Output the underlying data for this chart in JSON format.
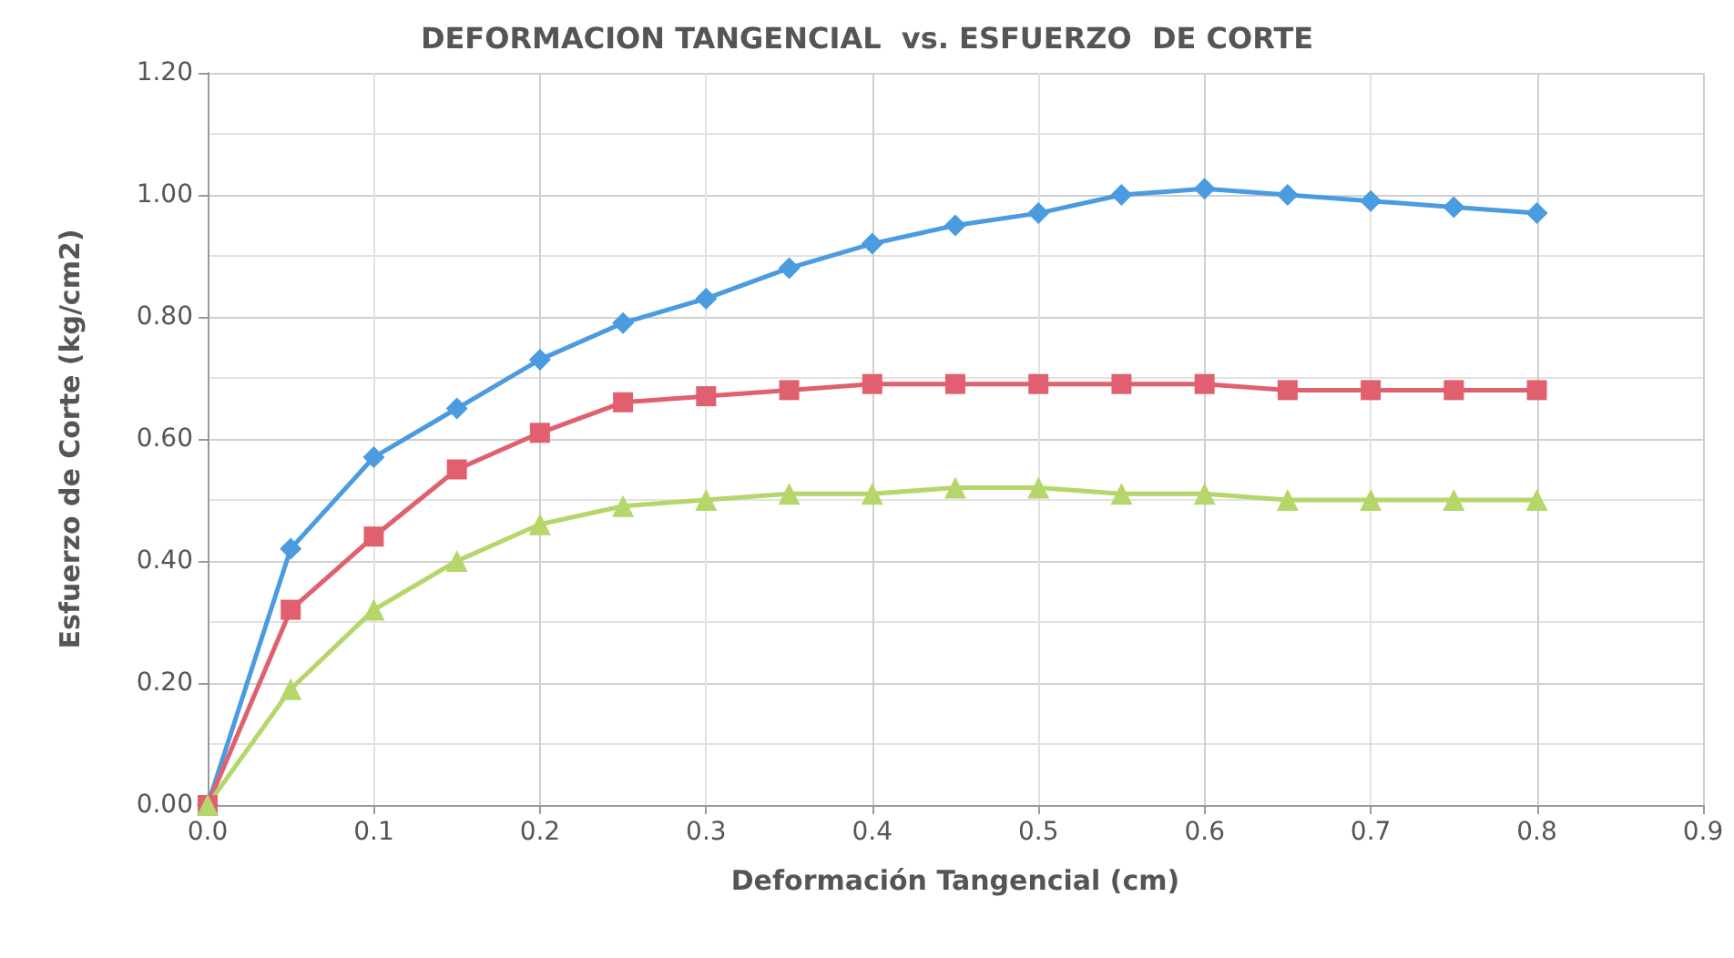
{
  "chart_data": {
    "type": "line",
    "title": "DEFORMACION TANGENCIAL  vs. ESFUERZO  DE CORTE",
    "xlabel": "Deformación Tangencial (cm)",
    "ylabel": "Esfuerzo de Corte (kg/cm2)",
    "x": [
      0,
      0.05,
      0.1,
      0.15,
      0.2,
      0.25,
      0.3,
      0.35,
      0.4,
      0.45,
      0.5,
      0.55,
      0.6,
      0.65,
      0.7,
      0.75,
      0.8
    ],
    "series": [
      {
        "color": "#4a9be0",
        "marker": "diamond",
        "values": [
          0,
          0.42,
          0.57,
          0.65,
          0.73,
          0.79,
          0.83,
          0.88,
          0.92,
          0.95,
          0.97,
          1.0,
          1.01,
          1.0,
          0.99,
          0.98,
          0.97
        ]
      },
      {
        "color": "#e06070",
        "marker": "square",
        "values": [
          0,
          0.32,
          0.44,
          0.55,
          0.61,
          0.66,
          0.67,
          0.68,
          0.69,
          0.69,
          0.69,
          0.69,
          0.69,
          0.68,
          0.68,
          0.68,
          0.68
        ]
      },
      {
        "color": "#b5d66a",
        "marker": "triangle",
        "values": [
          0,
          0.19,
          0.32,
          0.4,
          0.46,
          0.49,
          0.5,
          0.51,
          0.51,
          0.52,
          0.52,
          0.51,
          0.51,
          0.5,
          0.5,
          0.5,
          0.5
        ]
      }
    ],
    "xlim": [
      0,
      0.9
    ],
    "ylim": [
      0,
      1.2
    ],
    "xticks": [
      {
        "value": 0,
        "label": "0.0"
      },
      0.1,
      0.2,
      0.3,
      0.4,
      0.5,
      0.6,
      0.7,
      0.8,
      0.9
    ],
    "yticks": [
      {
        "value": 0,
        "label": "0.00"
      },
      {
        "value": 0.2,
        "label": "0.20"
      },
      {
        "value": 0.4,
        "label": "0.40"
      },
      {
        "value": 0.6,
        "label": "0.60"
      },
      {
        "value": 0.8,
        "label": "0.80"
      },
      {
        "value": 1,
        "label": "1.00"
      },
      {
        "value": 1.2,
        "label": "1.20"
      }
    ],
    "grid": true,
    "line_style": "solid"
  }
}
